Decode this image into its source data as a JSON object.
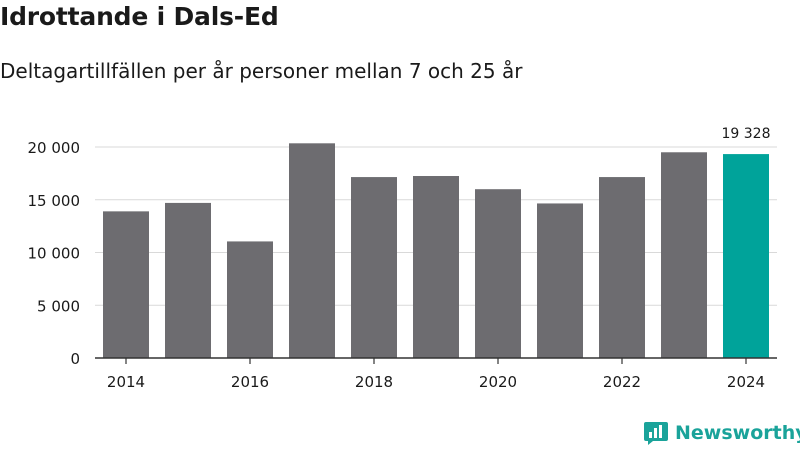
{
  "header": {
    "title": "Idrottande i Dals-Ed",
    "subtitle": "Deltagartillfällen per år personer mellan 7 och 25 år"
  },
  "chart_data": {
    "type": "bar",
    "x": [
      2014,
      2015,
      2016,
      2017,
      2018,
      2019,
      2020,
      2021,
      2022,
      2023,
      2024
    ],
    "values": [
      13900,
      14700,
      11050,
      20350,
      17150,
      17250,
      16000,
      14650,
      17150,
      19500,
      19328
    ],
    "xticks": [
      {
        "value": 2014,
        "label": "2014"
      },
      {
        "value": 2016,
        "label": "2016"
      },
      {
        "value": 2018,
        "label": "2018"
      },
      {
        "value": 2020,
        "label": "2020"
      },
      {
        "value": 2022,
        "label": "2022"
      },
      {
        "value": 2024,
        "label": "2024"
      }
    ],
    "yticks": [
      {
        "value": 0,
        "label": "0"
      },
      {
        "value": 5000,
        "label": "5 000"
      },
      {
        "value": 10000,
        "label": "10 000"
      },
      {
        "value": 15000,
        "label": "15 000"
      },
      {
        "value": 20000,
        "label": "20 000"
      }
    ],
    "ylim": [
      0,
      21000
    ],
    "grid": true,
    "highlight": {
      "x": 2024,
      "label": "19 328"
    },
    "colors": {
      "bar": "#6d6c70",
      "highlight": "#00a39a",
      "grid": "#d9d9d9",
      "axis": "#333333"
    }
  },
  "branding": {
    "name": "Newsworthy",
    "icon": "newsworthy-logo-icon",
    "color": "#1aa39a"
  }
}
